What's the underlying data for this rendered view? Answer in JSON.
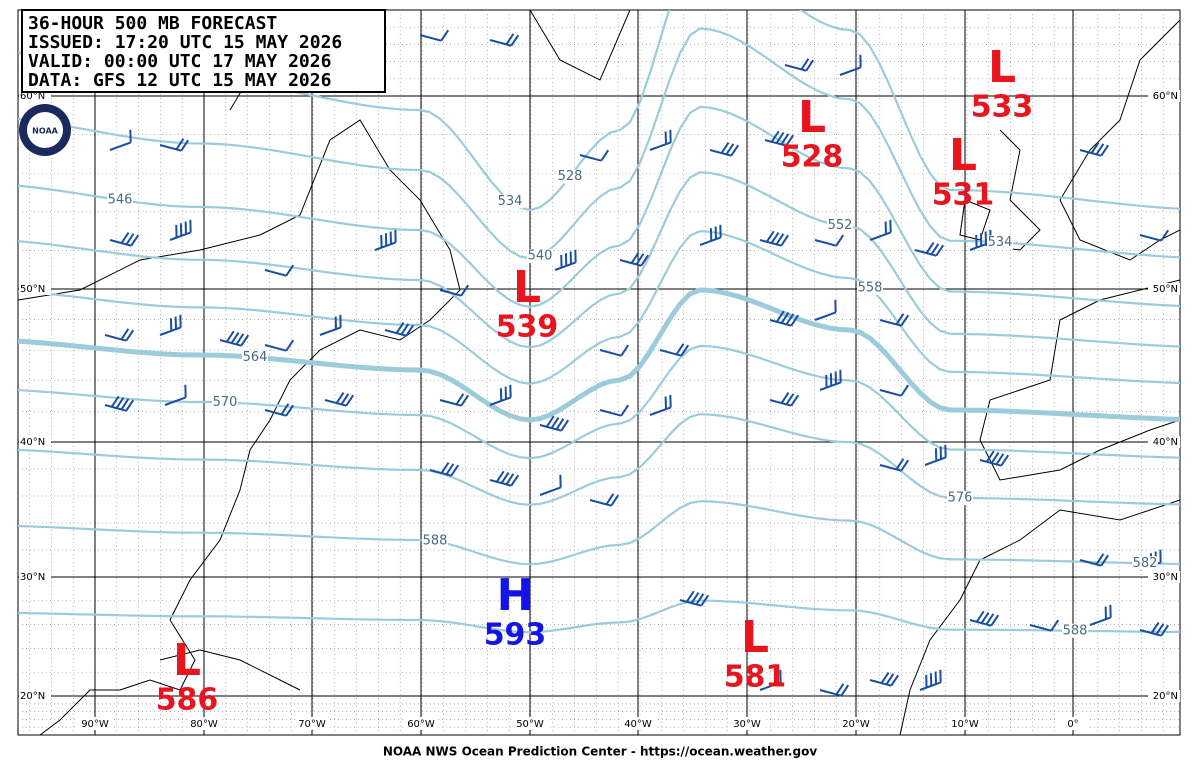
{
  "header": {
    "lines": [
      "36-HOUR 500 MB FORECAST",
      "ISSUED: 17:20 UTC 15 MAY 2026",
      "VALID:  00:00 UTC 17 MAY 2026",
      "DATA:  GFS 12 UTC 15 MAY 2026"
    ],
    "logo": "NOAA"
  },
  "latitude_labels": [
    "60°N",
    "50°N",
    "40°N",
    "30°N",
    "20°N"
  ],
  "longitude_labels": [
    "90°W",
    "80°W",
    "70°W",
    "60°W",
    "50°W",
    "40°W",
    "30°W",
    "20°W",
    "10°W",
    "0°"
  ],
  "contour_labels": [
    528,
    534,
    534,
    540,
    546,
    552,
    558,
    564,
    570,
    576,
    582,
    588,
    588
  ],
  "centers": [
    {
      "symbol": "L",
      "value": 528,
      "color": "#e8141e"
    },
    {
      "symbol": "L",
      "value": 533,
      "color": "#e8141e"
    },
    {
      "symbol": "L",
      "value": 531,
      "color": "#e8141e"
    },
    {
      "symbol": "L",
      "value": 539,
      "color": "#e8141e"
    },
    {
      "symbol": "H",
      "value": 593,
      "color": "#1414e8"
    },
    {
      "symbol": "L",
      "value": 581,
      "color": "#e8141e"
    },
    {
      "symbol": "L",
      "value": 586,
      "color": "#e8141e"
    }
  ],
  "footer": "NOAA NWS Ocean Prediction Center - https://ocean.weather.gov"
}
